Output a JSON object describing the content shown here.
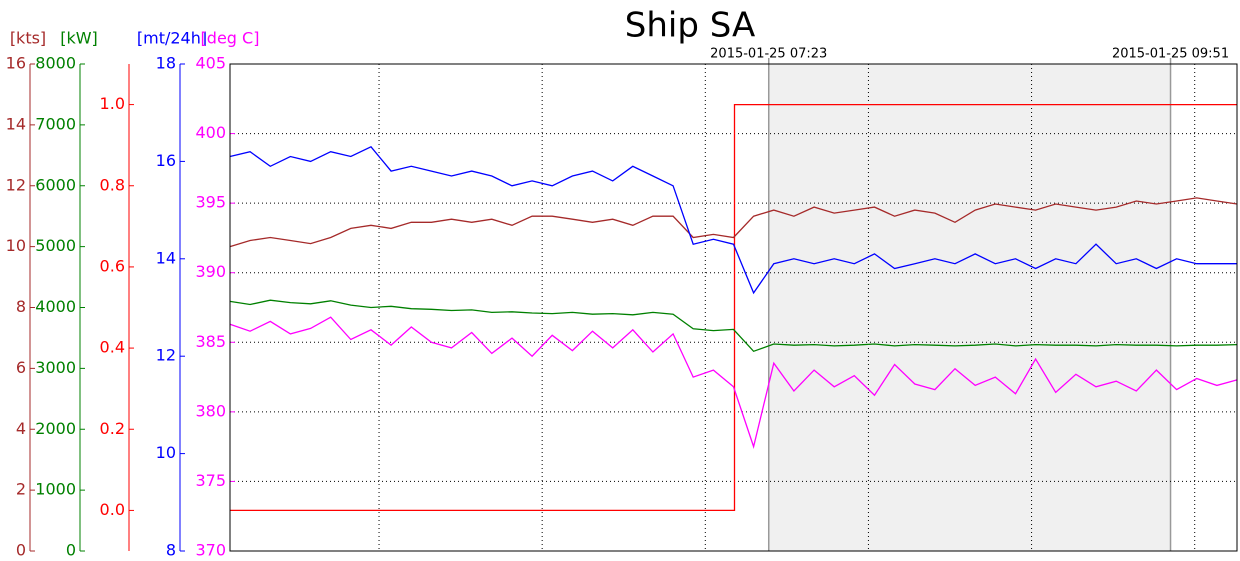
{
  "chart_data": {
    "type": "line",
    "title": "Ship SA",
    "xlim": [
      0,
      100
    ],
    "xticks": [
      14.8,
      31.0,
      47.2,
      63.4,
      79.6,
      95.8
    ],
    "grid": true,
    "annotations": [
      {
        "text": "2015-01-25 07:23",
        "x": 53.5
      },
      {
        "text": "2015-01-25 09:51",
        "x": 93.4
      }
    ],
    "axes": [
      {
        "label": "[kts]",
        "color": "#a52a2a",
        "lim": [
          0,
          16
        ],
        "ticks": [
          0,
          2,
          4,
          6,
          8,
          10,
          12,
          14,
          16
        ]
      },
      {
        "label": "[kW]",
        "color": "#008000",
        "lim": [
          0,
          8000
        ],
        "ticks": [
          0,
          1000,
          2000,
          3000,
          4000,
          5000,
          6000,
          7000,
          8000
        ]
      },
      {
        "color": "#ff0000",
        "lim": [
          -0.1,
          1.1
        ],
        "ticks": [
          {
            "value": 0,
            "label": "0.0"
          },
          {
            "value": 0.2,
            "label": "0.2"
          },
          {
            "value": 0.4,
            "label": "0.4"
          },
          {
            "value": 0.6,
            "label": "0.6"
          },
          {
            "value": 0.8,
            "label": "0.8"
          },
          {
            "value": 1,
            "label": "1.0"
          }
        ]
      },
      {
        "label": "[mt/24h]",
        "color": "#0000ff",
        "lim": [
          8,
          18
        ],
        "ticks": [
          8,
          10,
          12,
          14,
          16,
          18
        ]
      },
      {
        "label": "[deg C]",
        "color": "#ff00ff",
        "lim": [
          370,
          405
        ],
        "ticks": [
          370,
          375,
          380,
          385,
          390,
          395,
          400,
          405
        ]
      }
    ],
    "x": [
      0,
      2,
      4,
      6,
      8,
      10,
      12,
      14,
      16,
      18,
      20,
      22,
      24,
      26,
      28,
      30,
      32,
      34,
      36,
      38,
      40,
      42,
      44,
      46,
      48,
      50,
      52,
      54,
      56,
      58,
      60,
      62,
      64,
      66,
      68,
      70,
      72,
      74,
      76,
      78,
      80,
      82,
      84,
      86,
      88,
      90,
      92,
      94,
      96,
      98,
      100
    ],
    "series": [
      {
        "axis": 2,
        "color": "#ff0000",
        "x": [
          0,
          50.1,
          50.1,
          100
        ],
        "values": [
          0,
          0,
          1,
          1
        ]
      },
      {
        "axis": 0,
        "color": "#a52a2a",
        "values": [
          10.0,
          10.2,
          10.3,
          10.2,
          10.1,
          10.3,
          10.6,
          10.7,
          10.6,
          10.8,
          10.8,
          10.9,
          10.8,
          10.9,
          10.7,
          11.0,
          11.0,
          10.9,
          10.8,
          10.9,
          10.7,
          11.0,
          11.0,
          10.3,
          10.4,
          10.3,
          11.0,
          11.2,
          11.0,
          11.3,
          11.1,
          11.2,
          11.3,
          11.0,
          11.2,
          11.1,
          10.8,
          11.2,
          11.4,
          11.3,
          11.2,
          11.4,
          11.3,
          11.2,
          11.3,
          11.5,
          11.4,
          11.5,
          11.6,
          11.5,
          11.4
        ]
      },
      {
        "axis": 3,
        "color": "#0000ff",
        "values": [
          16.1,
          16.2,
          15.9,
          16.1,
          16.0,
          16.2,
          16.1,
          16.3,
          15.8,
          15.9,
          15.8,
          15.7,
          15.8,
          15.7,
          15.5,
          15.6,
          15.5,
          15.7,
          15.8,
          15.6,
          15.9,
          15.7,
          15.5,
          14.3,
          14.4,
          14.3,
          13.3,
          13.9,
          14.0,
          13.9,
          14.0,
          13.9,
          14.1,
          13.8,
          13.9,
          14.0,
          13.9,
          14.1,
          13.9,
          14.0,
          13.8,
          14.0,
          13.9,
          14.3,
          13.9,
          14.0,
          13.8,
          14.0,
          13.9,
          13.9,
          13.9
        ]
      },
      {
        "axis": 1,
        "color": "#008000",
        "values": [
          4100,
          4050,
          4120,
          4080,
          4060,
          4110,
          4040,
          4000,
          4020,
          3980,
          3970,
          3950,
          3960,
          3920,
          3930,
          3910,
          3900,
          3920,
          3890,
          3900,
          3880,
          3920,
          3890,
          3650,
          3620,
          3640,
          3280,
          3400,
          3380,
          3390,
          3370,
          3380,
          3400,
          3370,
          3390,
          3380,
          3370,
          3380,
          3400,
          3370,
          3390,
          3380,
          3380,
          3370,
          3390,
          3380,
          3380,
          3370,
          3380,
          3380,
          3390
        ]
      },
      {
        "axis": 4,
        "color": "#ff00ff",
        "values": [
          386.3,
          385.8,
          386.5,
          385.6,
          386.0,
          386.8,
          385.2,
          385.9,
          384.8,
          386.1,
          385.0,
          384.6,
          385.7,
          384.2,
          385.3,
          384.0,
          385.5,
          384.4,
          385.8,
          384.6,
          385.9,
          384.3,
          385.6,
          382.5,
          383.0,
          381.8,
          377.5,
          383.5,
          381.5,
          383.0,
          381.8,
          382.6,
          381.2,
          383.4,
          382.0,
          381.6,
          383.1,
          381.9,
          382.5,
          381.3,
          383.8,
          381.4,
          382.7,
          381.8,
          382.2,
          381.5,
          383.0,
          381.6,
          382.4,
          381.9,
          382.3
        ]
      }
    ]
  }
}
